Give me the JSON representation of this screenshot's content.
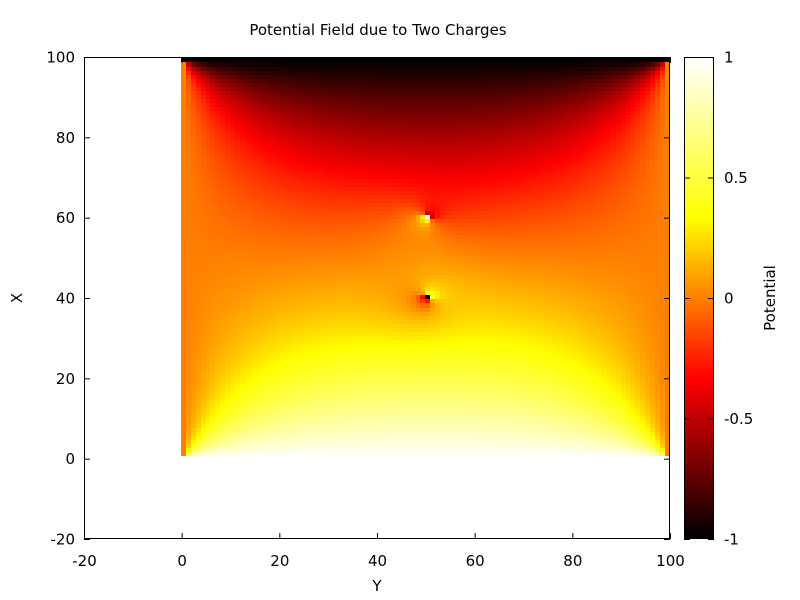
{
  "chart_data": {
    "type": "heatmap",
    "title": "Potential Field due to Two Charges",
    "xlabel": "Y",
    "ylabel": "X",
    "colorbar_label": "Potential",
    "xlim": [
      -20,
      100
    ],
    "ylim": [
      -20,
      100
    ],
    "xticks": [
      -20,
      0,
      20,
      40,
      60,
      80,
      100
    ],
    "yticks": [
      -20,
      0,
      20,
      40,
      60,
      80,
      100
    ],
    "colorbar_range": [
      -1,
      1
    ],
    "colorbar_ticks": [
      "1",
      "0.5",
      "0",
      "-0.5",
      "-1"
    ],
    "colormap": "hot",
    "grid": false,
    "field": {
      "y_range": [
        0,
        99
      ],
      "x_range": [
        0,
        99
      ],
      "resolution": 100,
      "boundary_potential": {
        "x_max_edge": -1,
        "x_min_edge": 1,
        "y_min_edge": 0,
        "y_max_edge": 0
      },
      "charges": [
        {
          "label": "positive",
          "y": 50,
          "x": 60,
          "value": 1
        },
        {
          "label": "negative",
          "y": 50,
          "x": 40,
          "value": -1
        }
      ]
    }
  }
}
